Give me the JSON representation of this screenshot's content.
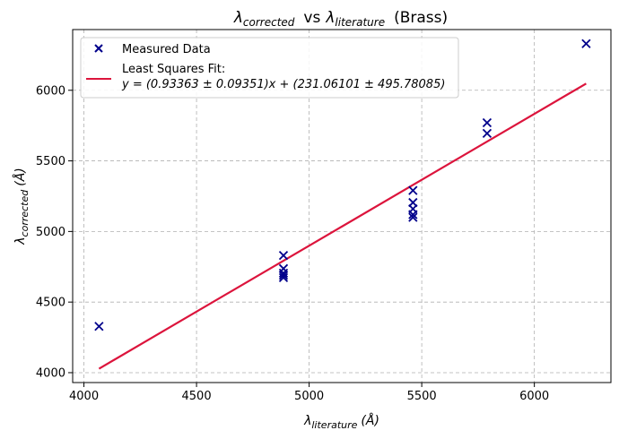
{
  "chart_data": {
    "type": "scatter",
    "title": {
      "lhs_symbol": "λ",
      "lhs_sub": "corrected",
      "vs": "vs",
      "rhs_symbol": "λ",
      "rhs_sub": "literature",
      "suffix": "(Brass)"
    },
    "xlabel": {
      "symbol": "λ",
      "sub": "literature",
      "unit": "(Å)"
    },
    "ylabel": {
      "symbol": "λ",
      "sub": "corrected",
      "unit": "(Å)"
    },
    "xlim": [
      3950,
      6340
    ],
    "ylim": [
      3930,
      6430
    ],
    "x_ticks": [
      4000,
      4500,
      5000,
      5500,
      6000
    ],
    "y_ticks": [
      4000,
      4500,
      5000,
      5500,
      6000
    ],
    "grid": true,
    "legend_position": "top-left",
    "series": [
      {
        "name": "Measured Data",
        "marker": "x",
        "color": "#00008b",
        "points": [
          {
            "x": 4067,
            "y": 4328
          },
          {
            "x": 4886,
            "y": 4830
          },
          {
            "x": 4886,
            "y": 4737
          },
          {
            "x": 4886,
            "y": 4705
          },
          {
            "x": 4886,
            "y": 4690
          },
          {
            "x": 4886,
            "y": 4673
          },
          {
            "x": 5461,
            "y": 5290
          },
          {
            "x": 5461,
            "y": 5205
          },
          {
            "x": 5461,
            "y": 5160
          },
          {
            "x": 5461,
            "y": 5120
          },
          {
            "x": 5461,
            "y": 5100
          },
          {
            "x": 5790,
            "y": 5770
          },
          {
            "x": 5790,
            "y": 5695
          },
          {
            "x": 6230,
            "y": 6330
          }
        ]
      }
    ],
    "fit": {
      "name_line1": "Least Squares Fit:",
      "name_line2": "y = (0.93363 ± 0.09351)x + (231.06101 ± 495.78085)",
      "color": "#dc143c",
      "slope": 0.93363,
      "intercept": 231.06101,
      "x_range": [
        4067,
        6230
      ]
    }
  }
}
